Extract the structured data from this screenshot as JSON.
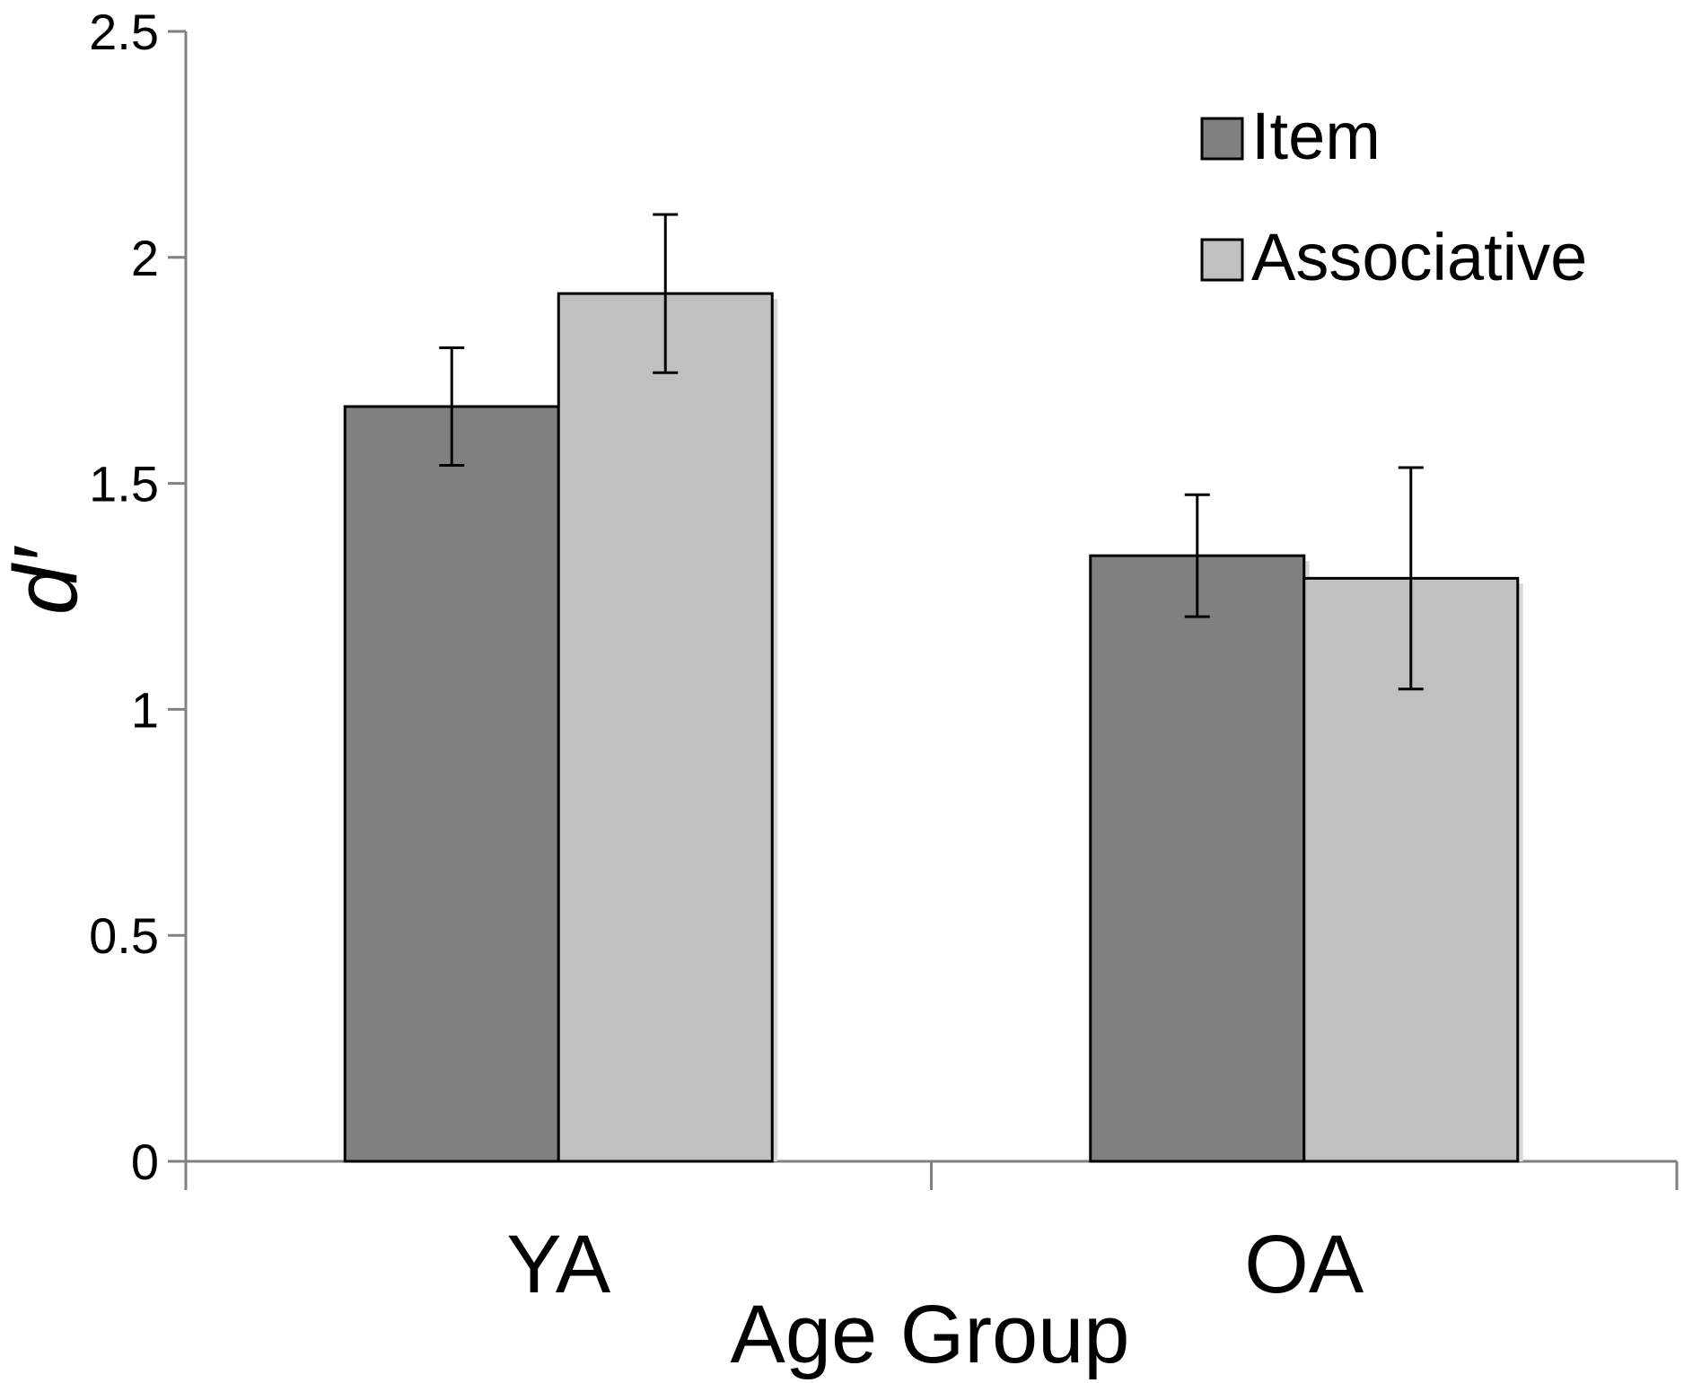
{
  "chart_data": {
    "type": "bar",
    "title": "",
    "xlabel": "Age Group",
    "ylabel": "d′",
    "categories": [
      "YA",
      "OA"
    ],
    "ylim": [
      0,
      2.5
    ],
    "yticks": [
      0,
      0.5,
      1,
      1.5,
      2,
      2.5
    ],
    "ytick_labels": [
      "0",
      "0.5",
      "1",
      "1.5",
      "2",
      "2.5"
    ],
    "grid": false,
    "legend_position": "top-right",
    "series": [
      {
        "name": "Item",
        "color": "#808080",
        "values": [
          1.67,
          1.34
        ],
        "errors": [
          0.13,
          0.135
        ]
      },
      {
        "name": "Associative",
        "color": "#c0c0c0",
        "values": [
          1.92,
          1.29
        ],
        "errors": [
          0.175,
          0.245
        ]
      }
    ]
  }
}
